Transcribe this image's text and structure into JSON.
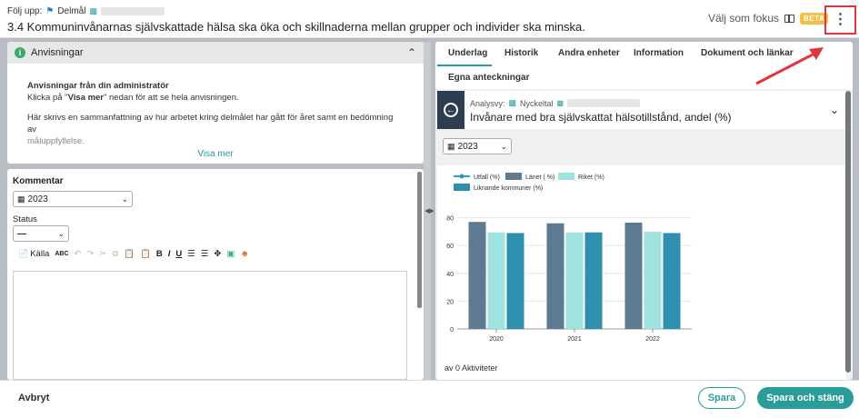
{
  "header": {
    "breadcrumb_prefix": "Följ upp:",
    "breadcrumb_type": "Delmål",
    "title": "3.4 Kommuninvånarnas självskattade hälsa ska öka och skillnaderna mellan grupper och individer ska minska.",
    "focus_label": "Välj som fokus",
    "beta_label": "BETA"
  },
  "instructions": {
    "heading": "Anvisningar",
    "from_admin": "Anvisningar från din administratör",
    "click_text_before": "Klicka på \"",
    "click_text_bold": "Visa mer",
    "click_text_after": "\" nedan för att se hela anvisningen.",
    "summary_text": "Här skrivs en sammanfattning av hur arbetet kring delmålet har gått för året samt en bedömning av",
    "summary_fade": "måluppfyllelse.",
    "show_more": "Visa mer"
  },
  "comment": {
    "label": "Kommentar",
    "year": "2023",
    "status_label": "Status",
    "status_value": "—",
    "toolbar_source": "Källa"
  },
  "tabs": [
    {
      "label": "Underlag"
    },
    {
      "label": "Historik"
    },
    {
      "label": "Andra enheter"
    },
    {
      "label": "Information"
    },
    {
      "label": "Dokument och länkar"
    },
    {
      "label": "Egna anteckningar"
    }
  ],
  "analysis": {
    "prefix": "Analysvy:",
    "kind": "Nyckeltal",
    "title": "Invånare med bra självskattat hälsotillstånd, andel (%)",
    "year": "2023",
    "activities": "av 0 Aktiviteter"
  },
  "footer": {
    "cancel": "Avbryt",
    "save": "Spara",
    "save_close": "Spara och stäng"
  },
  "colors": {
    "accent": "#2a9d9a",
    "beta": "#f5c04a",
    "highlight": "#e0353a"
  },
  "chart_data": {
    "type": "bar",
    "categories": [
      "2020",
      "2021",
      "2022"
    ],
    "series": [
      {
        "name": "Utfall (%)",
        "type": "line",
        "color": "#2a9db8",
        "values": [
          null,
          null,
          null
        ]
      },
      {
        "name": "Länet ( %)",
        "color": "#5e7a91",
        "values": [
          77,
          76,
          76.5
        ]
      },
      {
        "name": "Riket (%)",
        "color": "#9fe3df",
        "values": [
          69.5,
          69.5,
          70
        ]
      },
      {
        "name": "Liknande kommuner (%)",
        "color": "#2f8fae",
        "values": [
          69,
          69.5,
          69
        ]
      }
    ],
    "yticks": [
      0,
      20,
      40,
      60,
      80
    ],
    "ylim": [
      0,
      85
    ],
    "grid": true,
    "legend": "top-left"
  }
}
